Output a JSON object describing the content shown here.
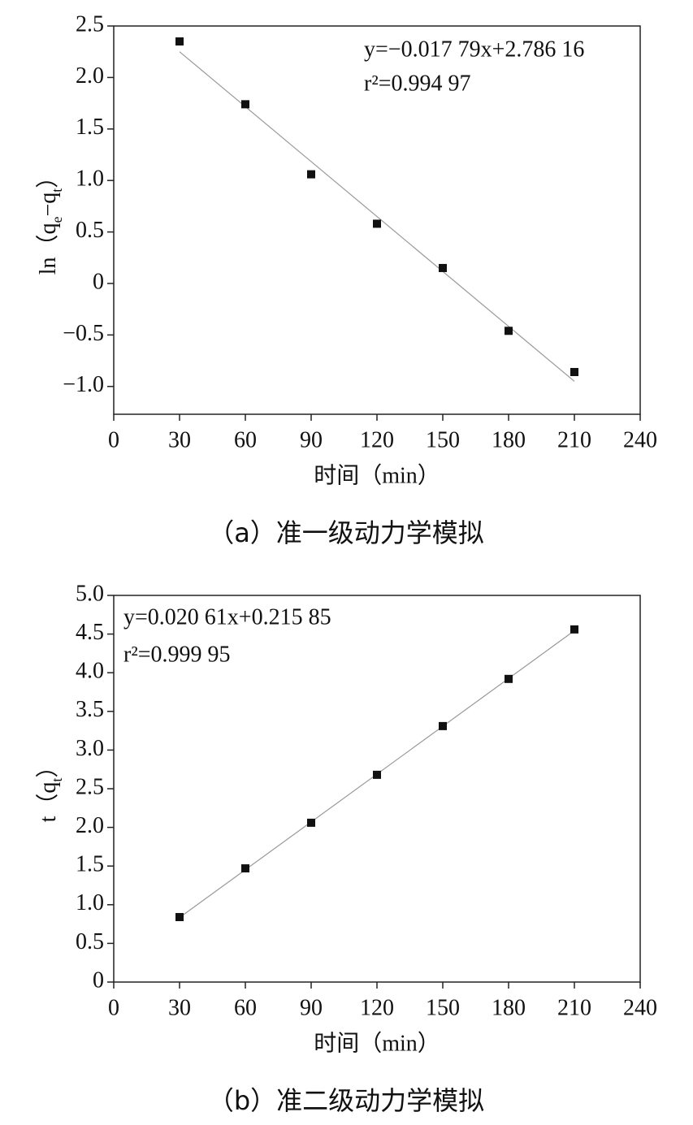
{
  "chart_data": [
    {
      "type": "scatter",
      "caption": "（a）准一级动力学模拟",
      "xlabel": "时间（min）",
      "ylabel": [
        "ln（q",
        "e",
        "−q",
        "t",
        "）"
      ],
      "annotations": [
        "y=−0.017 79x+2.786 16",
        "r²=0.994 97"
      ],
      "x": [
        30,
        60,
        90,
        120,
        150,
        180,
        210
      ],
      "values": [
        2.35,
        1.74,
        1.06,
        0.58,
        0.15,
        -0.46,
        -0.86
      ],
      "color": "#111111",
      "fit": {
        "x": [
          30,
          210
        ],
        "values": [
          2.25,
          -0.95
        ],
        "color": "#999999"
      },
      "xlim": [
        0,
        240
      ],
      "xticks": [
        0,
        30,
        60,
        90,
        120,
        150,
        180,
        210,
        240
      ],
      "ylim": [
        -1.27,
        2.5
      ],
      "yticks": [
        2.5,
        {
          "value": 2,
          "label": "2.0"
        },
        1.5,
        {
          "value": 1,
          "label": "1.0"
        },
        0.5,
        0,
        {
          "value": -0.5,
          "label": "−0.5"
        },
        {
          "value": -1,
          "label": "−1.0"
        }
      ]
    },
    {
      "type": "scatter",
      "caption": "（b）准二级动力学模拟",
      "xlabel": "时间（min）",
      "ylabel": [
        "t（q",
        "t",
        "）"
      ],
      "annotations": [
        "y=0.020 61x+0.215 85",
        "r²=0.999 95"
      ],
      "x": [
        30,
        60,
        90,
        120,
        150,
        180,
        210
      ],
      "values": [
        0.84,
        1.47,
        2.06,
        2.68,
        3.31,
        3.92,
        4.56
      ],
      "color": "#111111",
      "fit": {
        "x": [
          30,
          210
        ],
        "values": [
          0.834,
          4.544
        ],
        "color": "#999999"
      },
      "xlim": [
        0,
        240
      ],
      "xticks": [
        0,
        30,
        60,
        90,
        120,
        150,
        180,
        210,
        240
      ],
      "ylim": [
        0,
        5
      ],
      "yticks": [
        {
          "value": 5,
          "label": "5.0"
        },
        4.5,
        {
          "value": 4,
          "label": "4.0"
        },
        3.5,
        {
          "value": 3,
          "label": "3.0"
        },
        2.5,
        {
          "value": 2,
          "label": "2.0"
        },
        1.5,
        {
          "value": 1,
          "label": "1.0"
        },
        0.5,
        0
      ]
    }
  ]
}
